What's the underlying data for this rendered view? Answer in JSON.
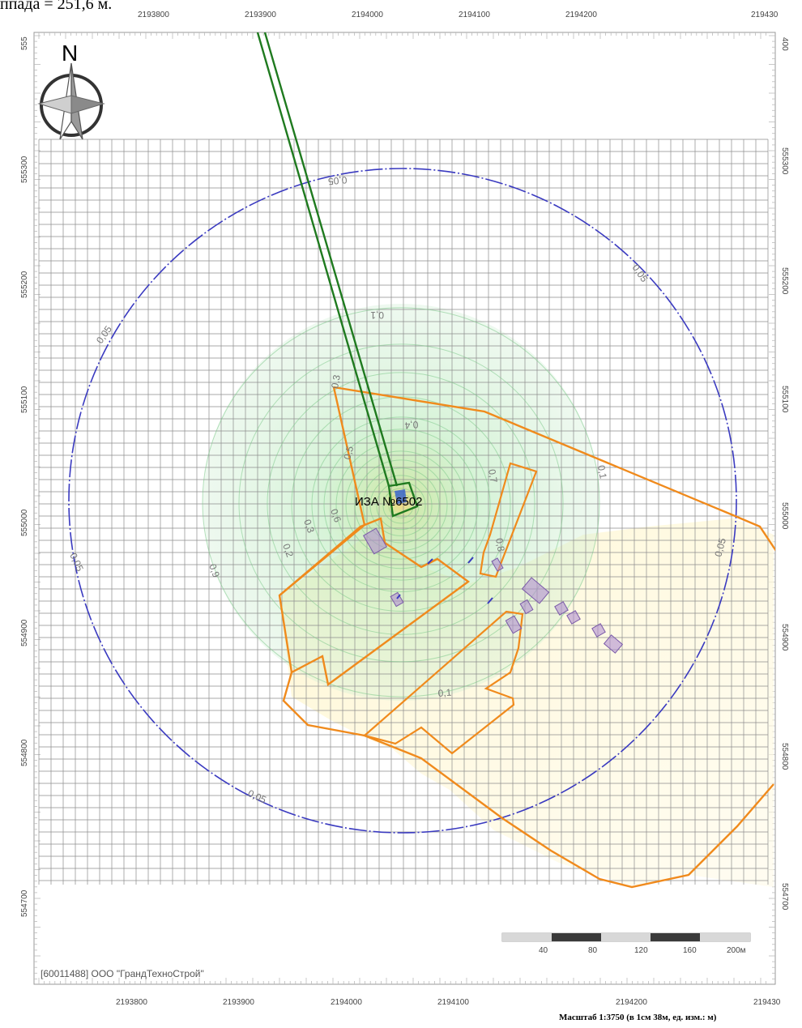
{
  "header_fragment": "ппада = 251,6 м.",
  "coords": {
    "x_ticks": [
      "2193800",
      "2193900",
      "2194000",
      "2194100",
      "2194200",
      "219430"
    ],
    "y_ticks": [
      "555300",
      "555200",
      "555100",
      "555000",
      "554900",
      "554800",
      "554700"
    ],
    "top_right_partial": "219430",
    "left_top_partial": "555",
    "right_top_partial": "400"
  },
  "north_label": "N",
  "source_label": "ИЗА №6502",
  "contour_labels": {
    "outer": [
      "0,05",
      "0,05",
      "0,05",
      "0,05",
      "0,05",
      "0,05"
    ],
    "inner": [
      "0,1",
      "0,1",
      "0,1",
      "0,2",
      "0,3",
      "0,4",
      "0,5",
      "0,6",
      "0,7",
      "0,8",
      "0,9",
      "0,3"
    ]
  },
  "scalebar": {
    "labels": [
      "40",
      "80",
      "120",
      "160",
      "200м"
    ]
  },
  "company": "[60011488] ООО \"ГрандТехноСтрой\"",
  "scale_text": "Масштаб 1:3750 (в 1см 38м, ед. изм.: м)",
  "colors": {
    "grid": "#8c8c8c",
    "outer_contour": "#3a3ac0",
    "boundary": "#f08a1c",
    "line": "#1f7a1f",
    "green_zone": "#9fe3a8",
    "yellow_zone": "#fff3c0"
  }
}
